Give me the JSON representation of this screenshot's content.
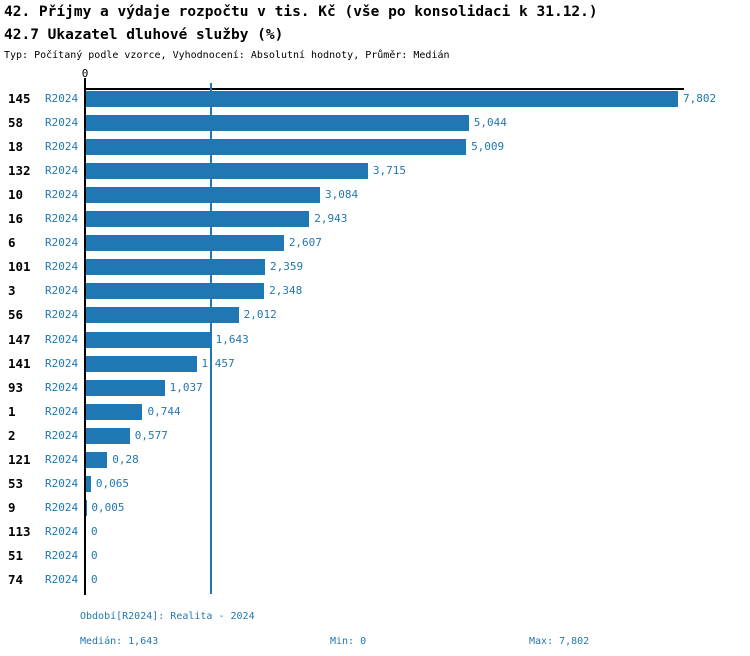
{
  "title": "42. Příjmy a výdaje rozpočtu v tis. Kč (vše po konsolidaci k 31.12.)",
  "subtitle": "42.7 Ukazatel dluhové služby (%)",
  "meta": "Typ: Počítaný podle vzorce, Vyhodnocení: Absolutní hodnoty, Průměr: Medián",
  "chart_data": {
    "type": "bar",
    "orientation": "horizontal",
    "series_label": "R2024",
    "axis_zero_label": "0",
    "categories": [
      "145",
      "58",
      "18",
      "132",
      "10",
      "16",
      "6",
      "101",
      "3",
      "56",
      "147",
      "141",
      "93",
      "1",
      "2",
      "121",
      "53",
      "9",
      "113",
      "51",
      "74"
    ],
    "values": [
      7.802,
      5.044,
      5.009,
      3.715,
      3.084,
      2.943,
      2.607,
      2.359,
      2.348,
      2.012,
      1.643,
      1.457,
      1.037,
      0.744,
      0.577,
      0.28,
      0.065,
      0.005,
      0,
      0,
      0
    ],
    "value_labels": [
      "7,802",
      "5,044",
      "5,009",
      "3,715",
      "3,084",
      "2,943",
      "2,607",
      "2,359",
      "2,348",
      "2,012",
      "1,643",
      "1,457",
      "1,037",
      "0,744",
      "0,577",
      "0,28",
      "0,065",
      "0,005",
      "0",
      "0",
      "0"
    ],
    "median": 1.643,
    "xlim": [
      0,
      7.802
    ],
    "grid": false,
    "legend": false,
    "bar_color": "#1f77b4",
    "median_line_color": "#1f77b4",
    "accent_text_color": "#1f77b4",
    "axis_color": "#000000"
  },
  "footer": {
    "period": "Období[R2024]: Realita - 2024",
    "median": "Medián: 1,643",
    "min": "Min: 0",
    "max": "Max: 7,802"
  }
}
